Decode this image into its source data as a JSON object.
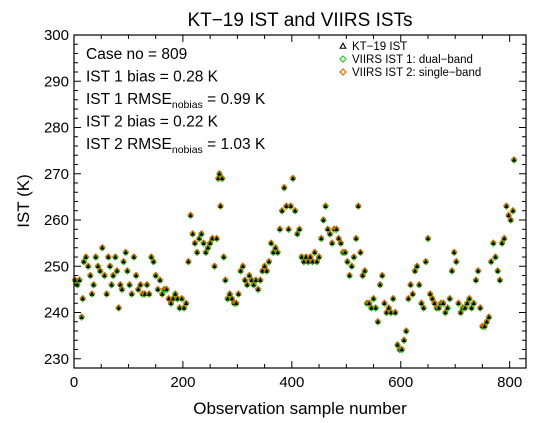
{
  "chart_data": {
    "type": "scatter",
    "title": "KT−19 IST and VIIRS ISTs",
    "xlabel": "Observation sample number",
    "ylabel": "IST (K)",
    "xlim": [
      0,
      830
    ],
    "ylim": [
      228,
      300
    ],
    "xticks": [
      0,
      200,
      400,
      600,
      800
    ],
    "yticks": [
      230,
      240,
      250,
      260,
      270,
      280,
      290,
      300
    ],
    "legend_position": "top-right",
    "stats": [
      {
        "main": "Case no = 809",
        "sub": "",
        "tail": ""
      },
      {
        "main": "IST 1 bias = 0.28 K",
        "sub": "",
        "tail": ""
      },
      {
        "main": "IST 1 RMSE",
        "sub": "nobias",
        "tail": " = 0.99 K"
      },
      {
        "main": "IST 2 bias = 0.22 K",
        "sub": "",
        "tail": ""
      },
      {
        "main": "IST 2 RMSE",
        "sub": "nobias",
        "tail": " = 1.03 K"
      }
    ],
    "series": [
      {
        "name": "KT−19 IST",
        "marker": "triangle",
        "color": "#000000"
      },
      {
        "name": "VIIRS IST 1: dual−band",
        "marker": "diamond",
        "color": "#22cc22"
      },
      {
        "name": "VIIRS IST 2: single−band",
        "marker": "diamond",
        "color": "#dd6600"
      }
    ],
    "points": [
      [
        2,
        247
      ],
      [
        6,
        246
      ],
      [
        10,
        247
      ],
      [
        14,
        239
      ],
      [
        16,
        243
      ],
      [
        18,
        251
      ],
      [
        22,
        252
      ],
      [
        26,
        250
      ],
      [
        30,
        248
      ],
      [
        33,
        244
      ],
      [
        36,
        246
      ],
      [
        40,
        252
      ],
      [
        44,
        250
      ],
      [
        48,
        249
      ],
      [
        52,
        254
      ],
      [
        56,
        248
      ],
      [
        60,
        244
      ],
      [
        63,
        252
      ],
      [
        66,
        250
      ],
      [
        69,
        246
      ],
      [
        72,
        248
      ],
      [
        76,
        252
      ],
      [
        79,
        249
      ],
      [
        82,
        241
      ],
      [
        85,
        246
      ],
      [
        88,
        245
      ],
      [
        91,
        251
      ],
      [
        95,
        253
      ],
      [
        98,
        249
      ],
      [
        102,
        246
      ],
      [
        106,
        244
      ],
      [
        110,
        252
      ],
      [
        114,
        248
      ],
      [
        118,
        245
      ],
      [
        122,
        246
      ],
      [
        126,
        244
      ],
      [
        130,
        244
      ],
      [
        134,
        246
      ],
      [
        138,
        244
      ],
      [
        142,
        252
      ],
      [
        146,
        251
      ],
      [
        150,
        248
      ],
      [
        154,
        245
      ],
      [
        158,
        247
      ],
      [
        162,
        244
      ],
      [
        166,
        245
      ],
      [
        170,
        245
      ],
      [
        174,
        243
      ],
      [
        178,
        242
      ],
      [
        182,
        243
      ],
      [
        186,
        244
      ],
      [
        190,
        243
      ],
      [
        194,
        241
      ],
      [
        198,
        243
      ],
      [
        202,
        241
      ],
      [
        206,
        242
      ],
      [
        210,
        251
      ],
      [
        214,
        261
      ],
      [
        218,
        257
      ],
      [
        222,
        255
      ],
      [
        226,
        253
      ],
      [
        230,
        256
      ],
      [
        234,
        257
      ],
      [
        238,
        255
      ],
      [
        242,
        253
      ],
      [
        246,
        254
      ],
      [
        250,
        255
      ],
      [
        254,
        256
      ],
      [
        258,
        250
      ],
      [
        262,
        256
      ],
      [
        265,
        269
      ],
      [
        267,
        270
      ],
      [
        269,
        263
      ],
      [
        272,
        269
      ],
      [
        275,
        252
      ],
      [
        278,
        247
      ],
      [
        282,
        243
      ],
      [
        286,
        244
      ],
      [
        290,
        243
      ],
      [
        294,
        242
      ],
      [
        298,
        242
      ],
      [
        302,
        244
      ],
      [
        306,
        249
      ],
      [
        310,
        250
      ],
      [
        314,
        247
      ],
      [
        318,
        246
      ],
      [
        322,
        248
      ],
      [
        326,
        247
      ],
      [
        330,
        246
      ],
      [
        334,
        247
      ],
      [
        338,
        245
      ],
      [
        342,
        247
      ],
      [
        346,
        249
      ],
      [
        350,
        250
      ],
      [
        354,
        249
      ],
      [
        358,
        251
      ],
      [
        362,
        255
      ],
      [
        366,
        253
      ],
      [
        370,
        254
      ],
      [
        374,
        253
      ],
      [
        378,
        258
      ],
      [
        382,
        262
      ],
      [
        386,
        267
      ],
      [
        390,
        263
      ],
      [
        394,
        258
      ],
      [
        398,
        263
      ],
      [
        402,
        269
      ],
      [
        406,
        262
      ],
      [
        410,
        257
      ],
      [
        414,
        258
      ],
      [
        418,
        252
      ],
      [
        422,
        251
      ],
      [
        426,
        252
      ],
      [
        430,
        251
      ],
      [
        434,
        252
      ],
      [
        438,
        251
      ],
      [
        442,
        253
      ],
      [
        446,
        251
      ],
      [
        450,
        252
      ],
      [
        454,
        256
      ],
      [
        458,
        260
      ],
      [
        462,
        263
      ],
      [
        466,
        258
      ],
      [
        470,
        257
      ],
      [
        474,
        255
      ],
      [
        478,
        258
      ],
      [
        482,
        258
      ],
      [
        486,
        256
      ],
      [
        490,
        255
      ],
      [
        494,
        253
      ],
      [
        498,
        253
      ],
      [
        502,
        251
      ],
      [
        506,
        248
      ],
      [
        510,
        250
      ],
      [
        514,
        252
      ],
      [
        518,
        256
      ],
      [
        522,
        263
      ],
      [
        526,
        253
      ],
      [
        530,
        248
      ],
      [
        534,
        249
      ],
      [
        538,
        242
      ],
      [
        542,
        242
      ],
      [
        546,
        241
      ],
      [
        550,
        243
      ],
      [
        554,
        241
      ],
      [
        558,
        238
      ],
      [
        562,
        246
      ],
      [
        566,
        248
      ],
      [
        570,
        242
      ],
      [
        574,
        240
      ],
      [
        578,
        241
      ],
      [
        582,
        240
      ],
      [
        586,
        243
      ],
      [
        590,
        240
      ],
      [
        594,
        233
      ],
      [
        598,
        232
      ],
      [
        602,
        232
      ],
      [
        606,
        234
      ],
      [
        610,
        236
      ],
      [
        614,
        243
      ],
      [
        618,
        246
      ],
      [
        622,
        244
      ],
      [
        626,
        249
      ],
      [
        630,
        250
      ],
      [
        634,
        246
      ],
      [
        638,
        242
      ],
      [
        642,
        241
      ],
      [
        646,
        251
      ],
      [
        650,
        256
      ],
      [
        654,
        244
      ],
      [
        658,
        243
      ],
      [
        662,
        242
      ],
      [
        666,
        241
      ],
      [
        670,
        241
      ],
      [
        674,
        242
      ],
      [
        678,
        242
      ],
      [
        682,
        240
      ],
      [
        686,
        241
      ],
      [
        690,
        243
      ],
      [
        694,
        249
      ],
      [
        698,
        253
      ],
      [
        702,
        251
      ],
      [
        706,
        242
      ],
      [
        710,
        240
      ],
      [
        714,
        241
      ],
      [
        718,
        241
      ],
      [
        722,
        242
      ],
      [
        726,
        243
      ],
      [
        730,
        241
      ],
      [
        734,
        242
      ],
      [
        738,
        247
      ],
      [
        742,
        249
      ],
      [
        746,
        241
      ],
      [
        750,
        237
      ],
      [
        754,
        237
      ],
      [
        758,
        238
      ],
      [
        762,
        239
      ],
      [
        766,
        251
      ],
      [
        770,
        255
      ],
      [
        774,
        252
      ],
      [
        778,
        249
      ],
      [
        782,
        247
      ],
      [
        786,
        255
      ],
      [
        790,
        256
      ],
      [
        794,
        263
      ],
      [
        798,
        261
      ],
      [
        802,
        260
      ],
      [
        806,
        262
      ],
      [
        808,
        273
      ]
    ]
  }
}
